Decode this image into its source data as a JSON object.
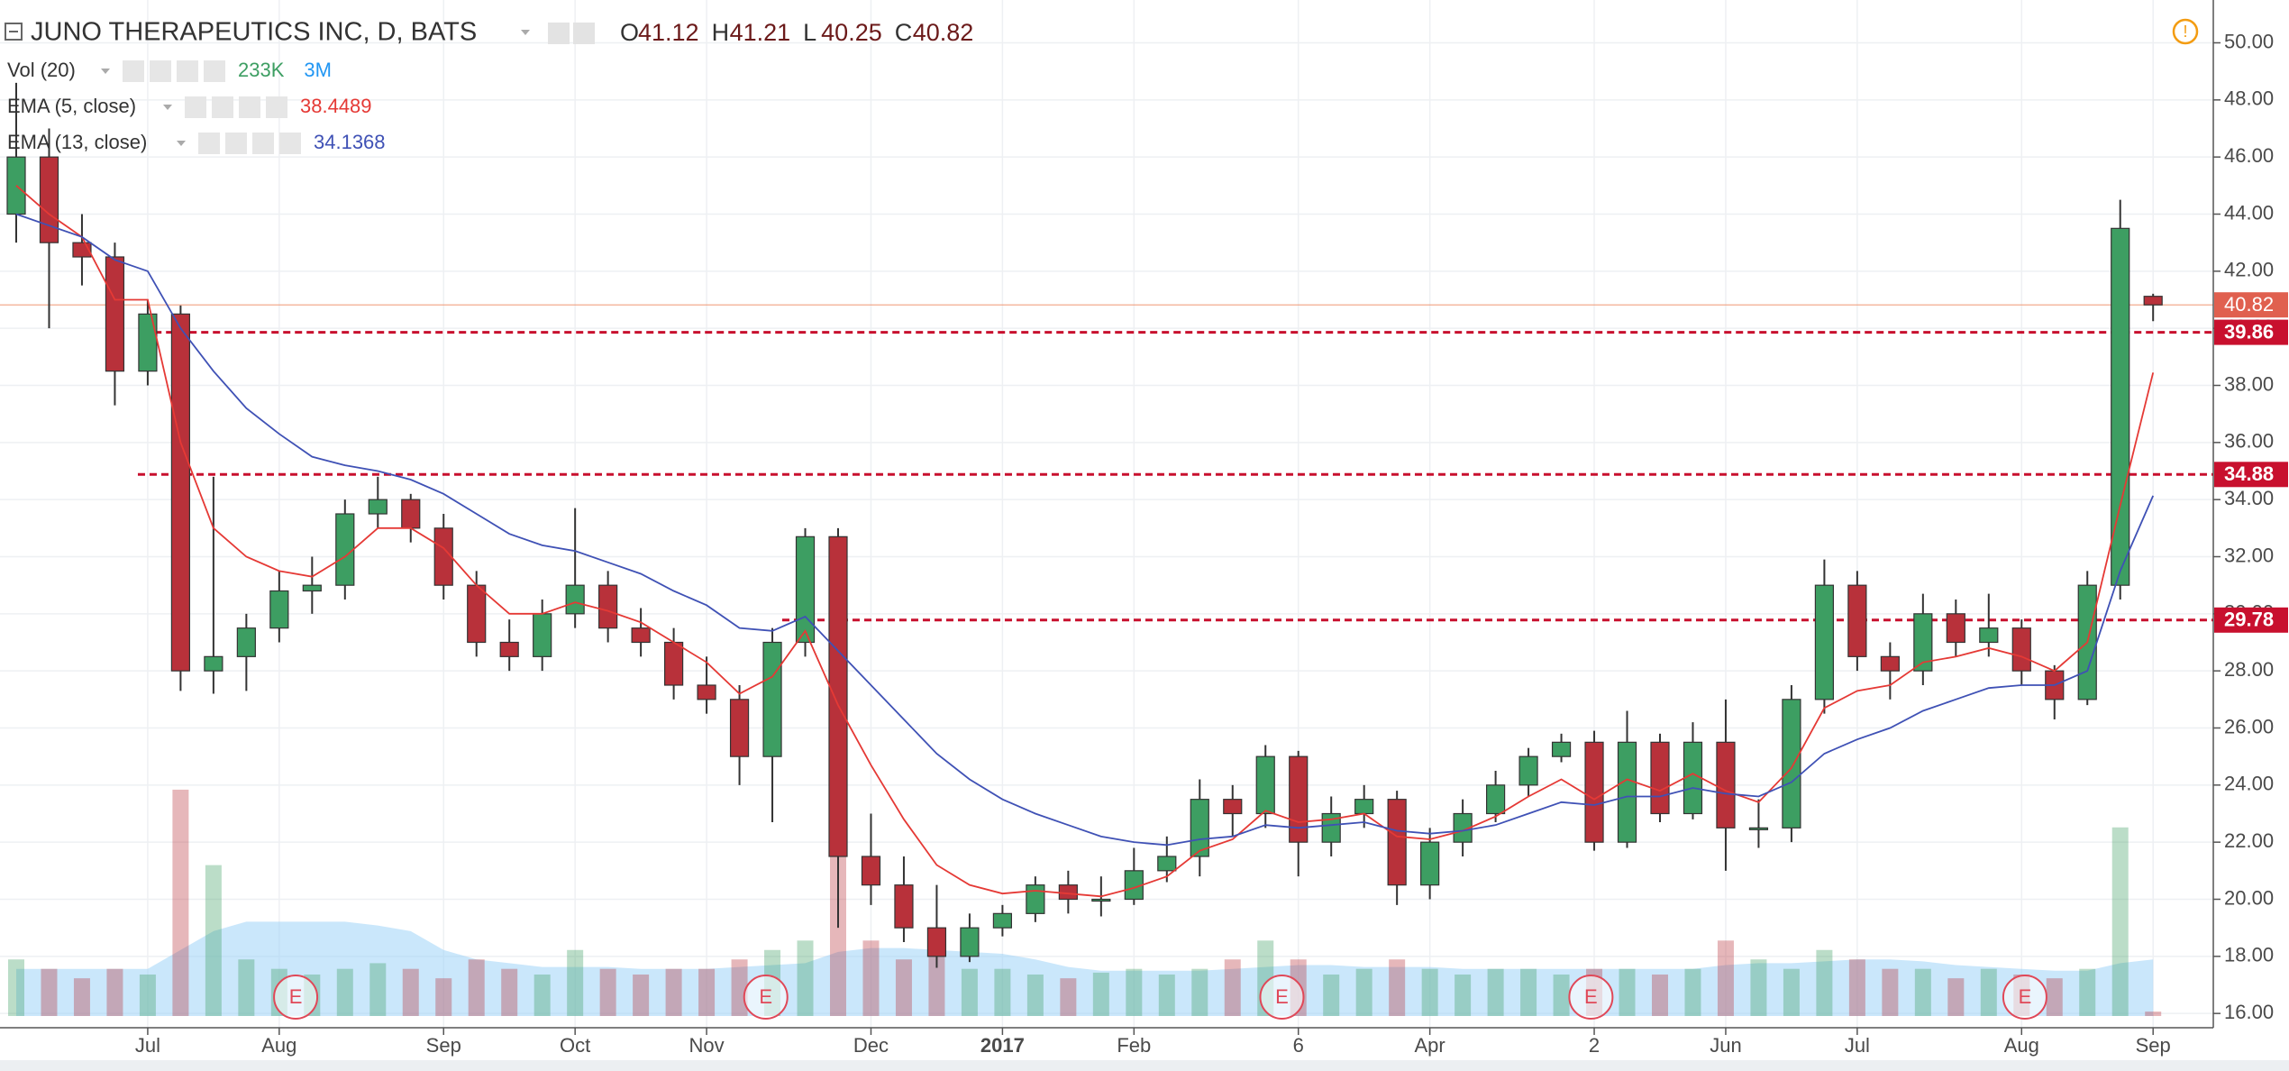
{
  "header": {
    "title": "JUNO THERAPEUTICS INC, D, BATS",
    "ohlc_labels": [
      "O",
      "H",
      "L",
      "C"
    ]
  },
  "chart_data": {
    "type": "candlestick",
    "categories": [
      null,
      null,
      null,
      null,
      "Jul",
      null,
      null,
      null,
      "Aug",
      null,
      null,
      null,
      null,
      "Sep",
      null,
      null,
      null,
      "Oct",
      null,
      null,
      null,
      "Nov",
      null,
      null,
      null,
      null,
      "Dec",
      null,
      null,
      null,
      "2017",
      null,
      null,
      null,
      "Feb",
      null,
      null,
      null,
      null,
      "6",
      null,
      null,
      null,
      "Apr",
      null,
      null,
      null,
      null,
      "2",
      null,
      null,
      null,
      "Jun",
      null,
      null,
      null,
      "Jul",
      null,
      null,
      null,
      null,
      "Aug",
      null,
      null,
      null,
      "Sep"
    ],
    "open": [
      44,
      46,
      43,
      42.5,
      38.5,
      40.5,
      28,
      28.5,
      29.5,
      30.8,
      31,
      33.5,
      34,
      33,
      31,
      29,
      28.5,
      30,
      31,
      29.5,
      29,
      27.5,
      27,
      25,
      29,
      32.7,
      21.5,
      20.5,
      19,
      18,
      19,
      19.5,
      20.5,
      20,
      20,
      21,
      21.5,
      23.5,
      23,
      25,
      22,
      23,
      23.5,
      20.5,
      22,
      23,
      24,
      25,
      25.5,
      22,
      25.5,
      23,
      25.5,
      22.5,
      22.5,
      27,
      31,
      28.5,
      28,
      30,
      29,
      29.5,
      28,
      27,
      31,
      41.12
    ],
    "high": [
      48.6,
      47,
      44,
      43,
      41,
      40.8,
      34.8,
      30,
      31.5,
      32,
      34,
      34.8,
      34.2,
      33.5,
      31.5,
      29.8,
      30.5,
      33.7,
      31.5,
      30.2,
      29.5,
      28.5,
      27.5,
      29.5,
      33,
      33,
      23,
      21.5,
      20.5,
      19.5,
      19.8,
      20.8,
      21,
      20.8,
      21.8,
      22.2,
      24.2,
      24,
      25.4,
      25.2,
      23.6,
      24,
      23.8,
      22.5,
      23.5,
      24.5,
      25.3,
      25.8,
      25.9,
      26.6,
      25.8,
      26.2,
      27,
      23.5,
      27.5,
      31.9,
      31.5,
      29,
      30.7,
      30.5,
      30.7,
      29.8,
      28.2,
      31.5,
      44.5,
      41.21
    ],
    "low": [
      43,
      40,
      41.5,
      37.3,
      38,
      27.3,
      27.2,
      27.3,
      29,
      30,
      30.5,
      33,
      32.5,
      30.5,
      28.5,
      28,
      28,
      29.5,
      29,
      28.5,
      27,
      26.5,
      24,
      22.7,
      28.5,
      19,
      19.8,
      18.5,
      17.6,
      17.8,
      18.7,
      19.2,
      19.5,
      19.4,
      19.8,
      20.6,
      20.8,
      22.2,
      22.5,
      20.8,
      21.5,
      22.5,
      19.8,
      20,
      21.5,
      22.7,
      23.6,
      24.8,
      21.7,
      21.8,
      22.7,
      22.8,
      21,
      21.8,
      22,
      26.5,
      28,
      27,
      27.5,
      28.5,
      28.5,
      27.5,
      26.3,
      26.8,
      30.5,
      40.25
    ],
    "close": [
      46,
      43,
      42.5,
      38.5,
      40.5,
      28,
      28.5,
      29.5,
      30.8,
      31,
      33.5,
      34,
      33,
      31,
      29,
      28.5,
      30,
      31,
      29.5,
      29,
      27.5,
      27,
      25,
      29,
      32.7,
      21.5,
      20.5,
      19,
      18,
      19,
      19.5,
      20.5,
      20,
      20,
      21,
      21.5,
      23.5,
      23,
      25,
      22,
      23,
      23.5,
      20.5,
      22,
      23,
      24,
      25,
      25.5,
      22,
      25.5,
      23,
      25.5,
      22.5,
      22.5,
      27,
      31,
      28.5,
      28,
      30,
      29,
      29.5,
      28,
      27,
      31,
      43.5,
      40.82
    ],
    "up_color": "#3d9e62",
    "down_color": "#b8313a",
    "ylim": [
      15.5,
      51.5
    ],
    "yticks": [
      {
        "value": 16,
        "label": "16.00"
      },
      {
        "value": 18,
        "label": "18.00"
      },
      {
        "value": 20,
        "label": "20.00"
      },
      {
        "value": 22,
        "label": "22.00"
      },
      {
        "value": 24,
        "label": "24.00"
      },
      {
        "value": 26,
        "label": "26.00"
      },
      {
        "value": 28,
        "label": "28.00"
      },
      {
        "value": 30,
        "label": "30.00"
      },
      {
        "value": 32,
        "label": "32.00"
      },
      {
        "value": 34,
        "label": "34.00"
      },
      {
        "value": 36,
        "label": "36.00"
      },
      {
        "value": 38,
        "label": "38.00"
      },
      {
        "value": 40,
        "label": "40.00"
      },
      {
        "value": 42,
        "label": "42.00"
      },
      {
        "value": 44,
        "label": "44.00"
      },
      {
        "value": 46,
        "label": "46.00"
      },
      {
        "value": 48,
        "label": "48.00"
      },
      {
        "value": 50,
        "label": "50.00"
      }
    ],
    "grid": true,
    "series": [
      {
        "name": "EMA (5, close)",
        "color": "#e53935",
        "values": [
          45,
          44,
          43.2,
          41,
          41,
          36,
          33,
          32,
          31.5,
          31.3,
          32,
          33,
          33,
          32.3,
          31,
          30,
          30,
          30.4,
          30.1,
          29.7,
          29,
          28.3,
          27.2,
          27.8,
          29.4,
          26.8,
          24.7,
          22.8,
          21.2,
          20.5,
          20.2,
          20.3,
          20.2,
          20.1,
          20.4,
          20.8,
          21.7,
          22.1,
          23.1,
          22.7,
          22.8,
          23,
          22.2,
          22.1,
          22.4,
          22.9,
          23.6,
          24.2,
          23.5,
          24.2,
          23.8,
          24.4,
          23.8,
          23.4,
          24.6,
          26.7,
          27.3,
          27.5,
          28.3,
          28.5,
          28.8,
          28.5,
          28,
          29,
          33.8,
          38.4489
        ]
      },
      {
        "name": "EMA (13, close)",
        "color": "#3f51b5",
        "values": [
          44,
          43.6,
          43.2,
          42.4,
          42,
          40,
          38.5,
          37.2,
          36.3,
          35.5,
          35.2,
          35,
          34.7,
          34.2,
          33.5,
          32.8,
          32.4,
          32.2,
          31.8,
          31.4,
          30.8,
          30.3,
          29.5,
          29.4,
          29.9,
          28.7,
          27.5,
          26.3,
          25.1,
          24.2,
          23.5,
          23,
          22.6,
          22.2,
          22,
          21.9,
          22.1,
          22.2,
          22.6,
          22.5,
          22.6,
          22.7,
          22.4,
          22.3,
          22.4,
          22.6,
          23,
          23.4,
          23.3,
          23.6,
          23.6,
          23.9,
          23.7,
          23.6,
          24.1,
          25.1,
          25.6,
          26,
          26.6,
          27,
          27.4,
          27.5,
          27.5,
          28,
          31.5,
          34.1368
        ]
      }
    ],
    "volume": {
      "name": "Vol (20)",
      "last_label": "233K",
      "ma_label": "3M",
      "ylim": [
        0,
        13
      ],
      "ma_color": "#9fd3f7",
      "values": [
        3,
        2.5,
        2,
        2.5,
        2.2,
        12,
        8,
        3,
        2.5,
        2.2,
        2.5,
        2.8,
        2.5,
        2,
        3,
        2.5,
        2.2,
        3.5,
        2.5,
        2.2,
        2.5,
        2.5,
        3,
        3.5,
        4,
        11,
        4,
        3,
        3.5,
        2.5,
        2.5,
        2.2,
        2,
        2.3,
        2.5,
        2.2,
        2.5,
        3,
        4,
        3,
        2.2,
        2.5,
        3,
        2.5,
        2.2,
        2.5,
        2.5,
        2.2,
        2.5,
        2.5,
        2.2,
        2.5,
        4,
        3,
        2.5,
        3.5,
        3,
        2.5,
        2.5,
        2,
        2.5,
        2.2,
        2,
        2.5,
        10,
        0.233
      ],
      "ma": [
        2.5,
        2.5,
        2.5,
        2.5,
        2.5,
        3.5,
        4.5,
        5,
        5,
        5,
        5,
        4.8,
        4.5,
        3.5,
        3,
        2.8,
        2.6,
        2.6,
        2.6,
        2.5,
        2.5,
        2.5,
        2.6,
        2.7,
        2.8,
        3.4,
        3.6,
        3.6,
        3.5,
        3.4,
        3.3,
        3,
        2.6,
        2.4,
        2.4,
        2.4,
        2.4,
        2.5,
        2.6,
        2.7,
        2.7,
        2.6,
        2.6,
        2.6,
        2.5,
        2.5,
        2.5,
        2.5,
        2.5,
        2.5,
        2.5,
        2.5,
        2.7,
        2.8,
        2.8,
        2.9,
        3,
        3,
        2.9,
        2.7,
        2.6,
        2.5,
        2.4,
        2.4,
        2.8,
        3
      ]
    },
    "levels": [
      39.86,
      34.88,
      29.78
    ],
    "level_color": "#c8102e",
    "earnings_label": "E"
  }
}
